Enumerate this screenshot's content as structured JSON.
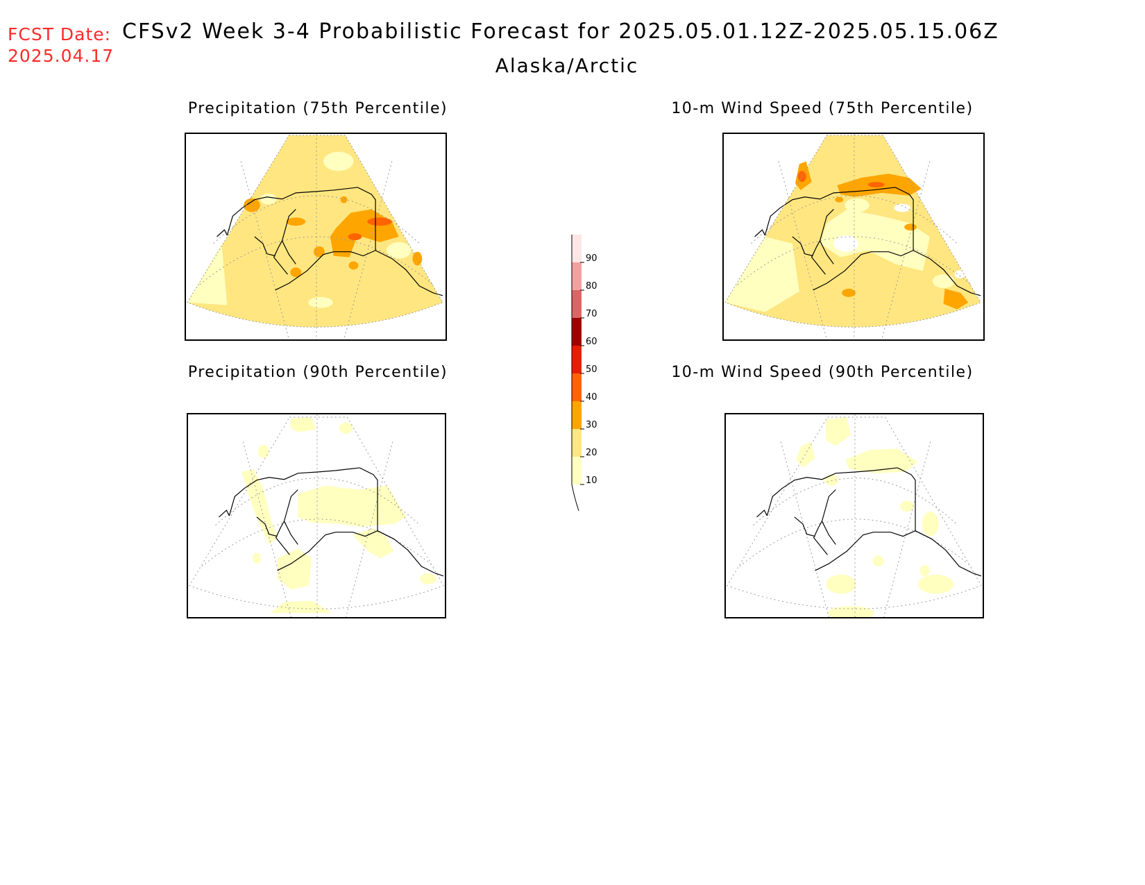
{
  "header": {
    "fcst_date_label": "FCST Date:",
    "fcst_date_value": "2025.04.17",
    "title": "CFSv2 Week 3-4 Probabilistic Forecast for 2025.05.01.12Z-2025.05.15.06Z",
    "region": "Alaska/Arctic"
  },
  "panels": [
    {
      "title": "Precipitation (75th Percentile)"
    },
    {
      "title": "10-m Wind Speed (75th Percentile)"
    },
    {
      "title": "Precipitation (90th Percentile)"
    },
    {
      "title": "10-m Wind Speed (90th Percentile)"
    }
  ],
  "colorbar": {
    "levels": [
      "10",
      "20",
      "30",
      "40",
      "50",
      "60",
      "70",
      "80",
      "90"
    ],
    "colors": [
      "#ffffc0",
      "#ffe680",
      "#ffa500",
      "#ff6400",
      "#e61e00",
      "#a00000",
      "#dc6464",
      "#f5a0a0",
      "#ffe6e6"
    ]
  },
  "colors": {
    "date_text": "#ff2a2a",
    "shade_10": "#ffffc0",
    "shade_20": "#ffe680",
    "shade_30": "#ffa500",
    "shade_40": "#ff6400"
  }
}
